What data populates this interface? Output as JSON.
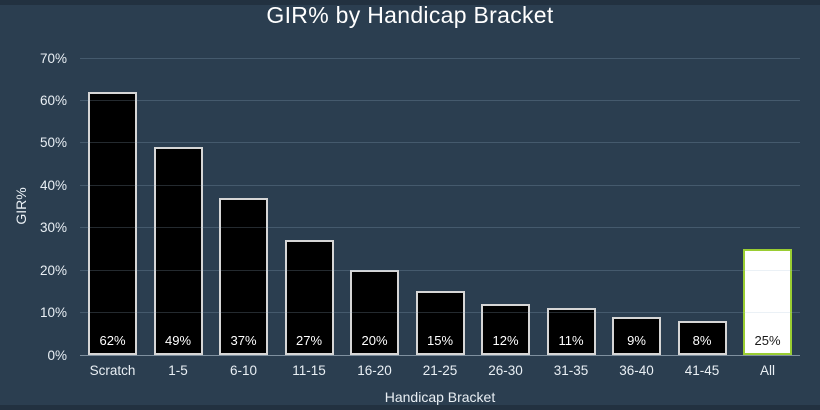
{
  "chart_data": {
    "type": "bar",
    "title": "GIR% by Handicap Bracket",
    "xlabel": "Handicap Bracket",
    "ylabel": "GIR%",
    "categories": [
      "Scratch",
      "1-5",
      "6-10",
      "11-15",
      "16-20",
      "21-25",
      "26-30",
      "31-35",
      "36-40",
      "41-45",
      "All"
    ],
    "values": [
      62,
      49,
      37,
      27,
      20,
      15,
      12,
      11,
      9,
      8,
      25
    ],
    "bar_labels": [
      "62%",
      "49%",
      "37%",
      "27%",
      "20%",
      "15%",
      "12%",
      "11%",
      "9%",
      "8%",
      "25%"
    ],
    "highlight_index": 10,
    "ylim": [
      0,
      70
    ],
    "ytick_values": [
      0,
      10,
      20,
      30,
      40,
      50,
      60,
      70
    ],
    "ytick_labels": [
      "0%",
      "10%",
      "20%",
      "30%",
      "40%",
      "50%",
      "60%",
      "70%"
    ],
    "grid": true,
    "legend": false,
    "colors": {
      "background": "#2b3e50",
      "bar_fill": "#000000",
      "bar_border": "#d6d6d6",
      "highlight_fill": "#ffffff",
      "highlight_border": "#9acd32",
      "bar_label": "#ffffff",
      "highlight_bar_label": "#1a1a1a",
      "axis_text": "#e9eff4",
      "title_text": "#ffffff"
    }
  }
}
